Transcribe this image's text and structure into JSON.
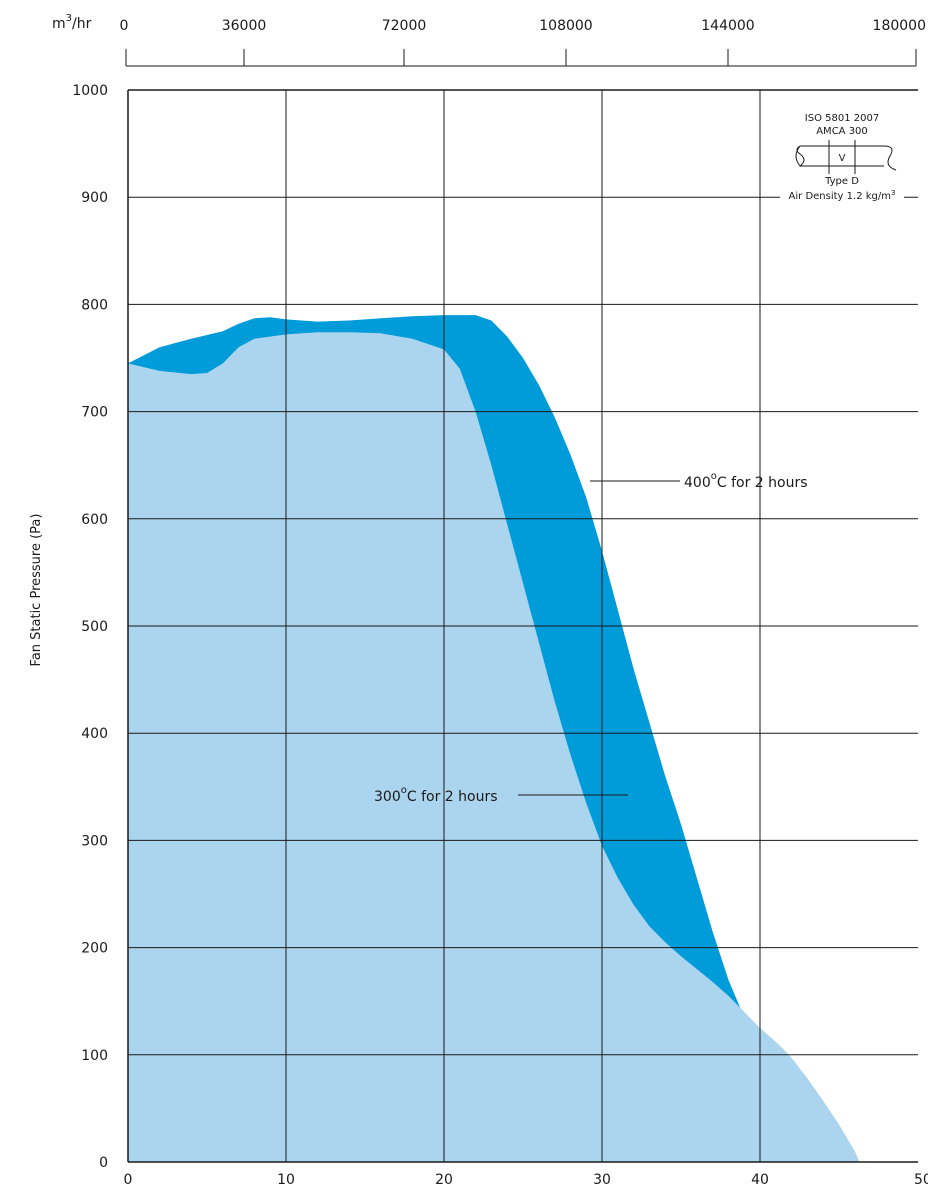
{
  "chart_data": {
    "type": "area",
    "title": "",
    "ylabel": "Fan Static Pressure (Pa)",
    "xlabel": "",
    "xlim": [
      0,
      50
    ],
    "ylim": [
      0,
      1000
    ],
    "x_ticks": [
      "0",
      "10",
      "20",
      "30",
      "40",
      "50"
    ],
    "y_ticks": [
      "0",
      "100",
      "200",
      "300",
      "400",
      "500",
      "600",
      "700",
      "800",
      "900",
      "1000"
    ],
    "top_axis": {
      "unit_base": "m",
      "unit_exp": "3",
      "unit_rest": "/hr",
      "ticks": [
        "0",
        "36000",
        "72000",
        "108000",
        "144000",
        "180000"
      ]
    },
    "grid": true,
    "series": [
      {
        "name": "400°C for 2 hours",
        "color": "#009bd9",
        "x": [
          0,
          2,
          4,
          6,
          7,
          8,
          9,
          10,
          12,
          14,
          16,
          18,
          20,
          22,
          23,
          24,
          25,
          26,
          27,
          28,
          29,
          30,
          31,
          32,
          33,
          34,
          35,
          36,
          37,
          38,
          39,
          40,
          41,
          41.5
        ],
        "y": [
          745,
          760,
          768,
          775,
          782,
          787,
          788,
          786,
          784,
          785,
          787,
          789,
          790,
          790,
          785,
          770,
          750,
          725,
          695,
          660,
          620,
          570,
          515,
          460,
          410,
          360,
          315,
          265,
          215,
          170,
          135,
          118,
          108,
          105
        ]
      },
      {
        "name": "300°C for 2 hours",
        "color": "#abd4ef",
        "x": [
          0,
          2,
          4,
          5,
          6,
          7,
          8,
          10,
          12,
          14,
          16,
          18,
          20,
          21,
          22,
          23,
          24,
          25,
          26,
          27,
          28,
          29,
          30,
          31,
          32,
          33,
          34,
          35,
          36,
          37,
          38,
          39,
          40,
          41,
          41.5,
          42,
          43,
          44,
          45,
          46,
          46.3
        ],
        "y": [
          745,
          738,
          735,
          736,
          745,
          760,
          768,
          772,
          774,
          774,
          773,
          768,
          758,
          740,
          700,
          650,
          595,
          540,
          485,
          430,
          380,
          335,
          295,
          265,
          240,
          220,
          205,
          192,
          180,
          168,
          155,
          140,
          125,
          112,
          105,
          97,
          78,
          57,
          35,
          10,
          0
        ]
      }
    ],
    "annotations": [
      {
        "label_base": "400",
        "label_sup": "o",
        "label_rest": "C for 2 hours"
      },
      {
        "label_base": "300",
        "label_sup": "o",
        "label_rest": "C for 2 hours"
      }
    ],
    "standard_box": {
      "line1": "ISO 5801 2007",
      "line2": "AMCA 300",
      "symbol": "V",
      "line3": "Type D",
      "line4_base": "Air Density 1.2 kg/m",
      "line4_sup": "3"
    }
  }
}
